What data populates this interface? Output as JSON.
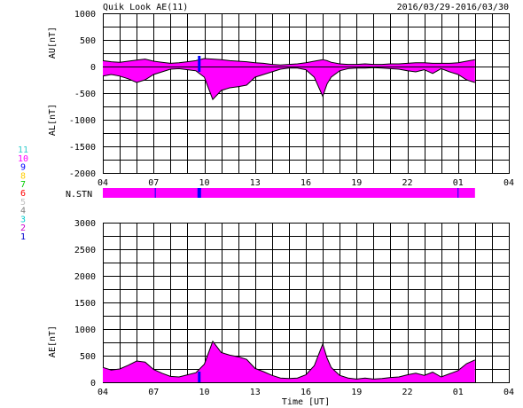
{
  "header": {
    "title": "Quik Look AE(11)",
    "date_range": "2016/03/29-2016/03/30"
  },
  "station_legend": [
    {
      "label": "11",
      "color": "#33cccc"
    },
    {
      "label": "10",
      "color": "#ff00ff"
    },
    {
      "label": "9",
      "color": "#0000ff"
    },
    {
      "label": "8",
      "color": "#ffcc00"
    },
    {
      "label": "7",
      "color": "#00cc00"
    },
    {
      "label": "6",
      "color": "#ff0000"
    },
    {
      "label": "5",
      "color": "#c0c0c0"
    },
    {
      "label": "4",
      "color": "#808080"
    },
    {
      "label": "3",
      "color": "#00cccc"
    },
    {
      "label": "2",
      "color": "#cc00cc"
    },
    {
      "label": "1",
      "color": "#0000cc"
    }
  ],
  "colors": {
    "fill": "#ff00ff",
    "station_marker": "#0000ff",
    "line": "#000000"
  },
  "nstn_label": "N.STN",
  "chart_data": [
    {
      "type": "area",
      "ylabel_upper": "AU[nT]",
      "ylabel_lower": "AL[nT]",
      "ylim": [
        -2000,
        1000
      ],
      "y_ticks": [
        "1000",
        "500",
        "0",
        "-500",
        "-1000",
        "-1500",
        "-2000"
      ],
      "y_tick_values": [
        1000,
        500,
        0,
        -500,
        -1000,
        -1500,
        -2000
      ],
      "xlim": [
        4,
        28
      ],
      "x_ticks": [
        "04",
        "07",
        "10",
        "13",
        "16",
        "19",
        "22",
        "01",
        "04"
      ],
      "x_tick_values": [
        4,
        7,
        10,
        13,
        16,
        19,
        22,
        25,
        28
      ],
      "grid": true,
      "x": [
        4,
        4.5,
        5,
        5.5,
        6,
        6.5,
        7,
        7.5,
        8,
        8.5,
        9,
        9.5,
        10,
        10.5,
        11,
        11.5,
        12,
        12.5,
        13,
        13.5,
        14,
        14.5,
        15,
        15.5,
        16,
        16.5,
        17,
        17.25,
        17.5,
        18,
        18.5,
        19,
        19.5,
        20,
        20.5,
        21,
        21.5,
        22,
        22.5,
        23,
        23.5,
        24,
        24.5,
        25,
        25.5,
        26
      ],
      "series": [
        {
          "values": [
            110,
            90,
            80,
            100,
            120,
            140,
            100,
            80,
            60,
            70,
            90,
            110,
            150,
            140,
            130,
            110,
            100,
            90,
            70,
            60,
            40,
            30,
            40,
            50,
            70,
            100,
            130,
            110,
            80,
            50,
            40,
            40,
            50,
            40,
            40,
            50,
            50,
            60,
            70,
            70,
            60,
            60,
            60,
            70,
            100,
            130
          ]
        },
        {
          "values": [
            -180,
            -150,
            -180,
            -230,
            -300,
            -250,
            -150,
            -100,
            -50,
            -40,
            -60,
            -80,
            -200,
            -620,
            -450,
            -400,
            -380,
            -350,
            -200,
            -150,
            -100,
            -50,
            -30,
            -30,
            -60,
            -200,
            -560,
            -330,
            -200,
            -80,
            -40,
            -30,
            -30,
            -20,
            -30,
            -40,
            -50,
            -80,
            -100,
            -60,
            -130,
            -40,
            -100,
            -150,
            -250,
            -300
          ]
        }
      ]
    },
    {
      "type": "area",
      "ylabel": "AE[nT]",
      "xlabel": "Time [UT]",
      "ylim": [
        0,
        3000
      ],
      "y_ticks": [
        "3000",
        "2500",
        "2000",
        "1500",
        "1000",
        "500",
        "0"
      ],
      "y_tick_values": [
        3000,
        2500,
        2000,
        1500,
        1000,
        500,
        0
      ],
      "xlim": [
        4,
        28
      ],
      "x_ticks": [
        "04",
        "07",
        "10",
        "13",
        "16",
        "19",
        "22",
        "01",
        "04"
      ],
      "x_tick_values": [
        4,
        7,
        10,
        13,
        16,
        19,
        22,
        25,
        28
      ],
      "grid": true,
      "x": [
        4,
        4.5,
        5,
        5.5,
        6,
        6.5,
        7,
        7.5,
        8,
        8.5,
        9,
        9.5,
        10,
        10.5,
        11,
        11.5,
        12,
        12.5,
        13,
        13.5,
        14,
        14.5,
        15,
        15.5,
        16,
        16.5,
        17,
        17.25,
        17.5,
        18,
        18.5,
        19,
        19.5,
        20,
        20.5,
        21,
        21.5,
        22,
        22.5,
        23,
        23.5,
        24,
        24.5,
        25,
        25.5,
        26
      ],
      "series": [
        {
          "values": [
            280,
            230,
            250,
            320,
            400,
            380,
            240,
            170,
            110,
            100,
            140,
            180,
            340,
            770,
            560,
            510,
            480,
            430,
            260,
            200,
            130,
            80,
            70,
            80,
            140,
            310,
            720,
            460,
            280,
            130,
            80,
            60,
            80,
            60,
            70,
            90,
            100,
            140,
            170,
            130,
            190,
            100,
            160,
            220,
            350,
            420
          ]
        }
      ]
    }
  ],
  "nstn_bar": {
    "start": 4,
    "end": 26,
    "markers": [
      7.1,
      9.7,
      25
    ]
  }
}
